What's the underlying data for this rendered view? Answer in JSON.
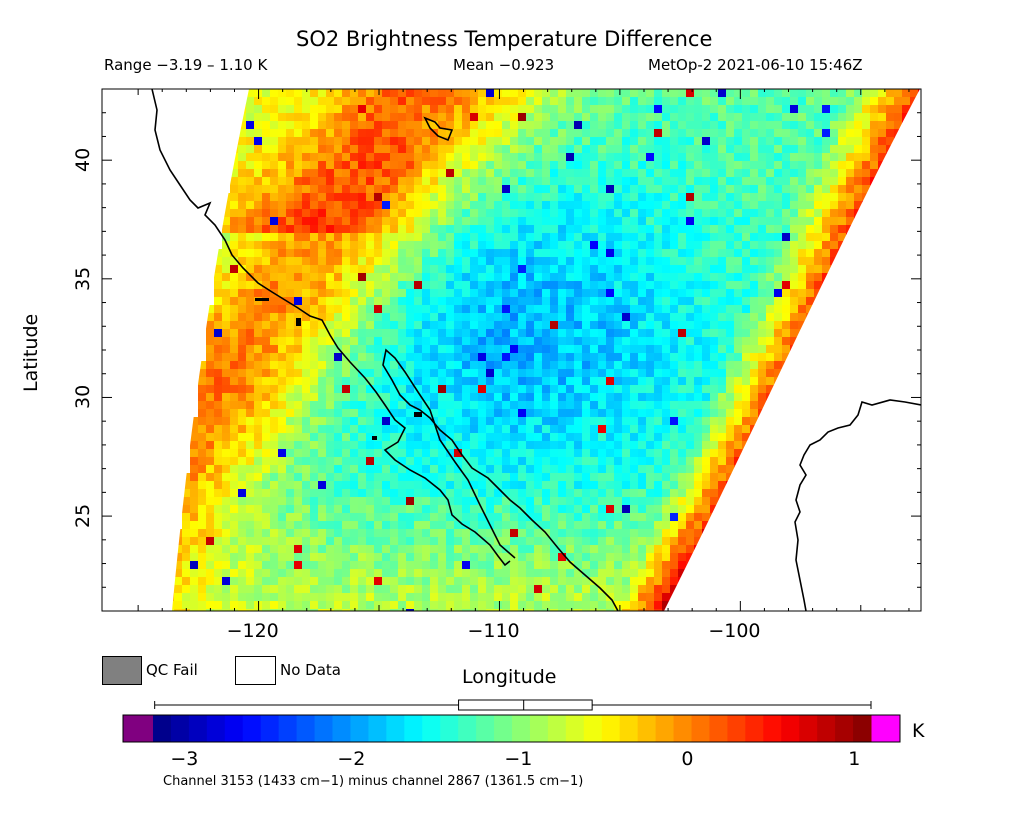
{
  "header": {
    "title": "SO2 Brightness Temperature Difference",
    "range": "Range −3.19 – 1.10 K",
    "mean": "Mean −0.923",
    "satellite_time": "MetOp-2 2021-06-10 15:46Z"
  },
  "axes": {
    "x_label": "Longitude",
    "y_label": "Latitude",
    "x_ticks": [
      {
        "value": -120,
        "label": "−120"
      },
      {
        "value": -110,
        "label": "−110"
      },
      {
        "value": -100,
        "label": "−100"
      }
    ],
    "y_ticks": [
      {
        "value": 40,
        "label": "40"
      },
      {
        "value": 35,
        "label": "35"
      },
      {
        "value": 30,
        "label": "30"
      },
      {
        "value": 25,
        "label": "25"
      }
    ],
    "lon_range": [
      -126.5,
      -92.5
    ],
    "lat_range": [
      21.0,
      43.0
    ]
  },
  "legend": {
    "qc_fail_label": "QC Fail",
    "no_data_label": "No Data",
    "qc_fail_color": "#808080",
    "no_data_color": "#ffffff"
  },
  "colorbar": {
    "unit": "K",
    "range": [
      -3.4,
      1.3
    ],
    "ticks": [
      {
        "value": -3,
        "label": "−3"
      },
      {
        "value": -2,
        "label": "−2"
      },
      {
        "value": -1,
        "label": "−1"
      },
      {
        "value": 0,
        "label": "0"
      },
      {
        "value": 1,
        "label": "1"
      }
    ],
    "under_color": "#800080",
    "over_color": "#ff00ff",
    "box_stats": {
      "min": -3.19,
      "q1": -1.37,
      "median": -0.98,
      "q3": -0.57,
      "max": 1.1
    }
  },
  "footnote": "Channel 3153 (1433 cm−1) minus channel 2867 (1361.5 cm−1)"
}
